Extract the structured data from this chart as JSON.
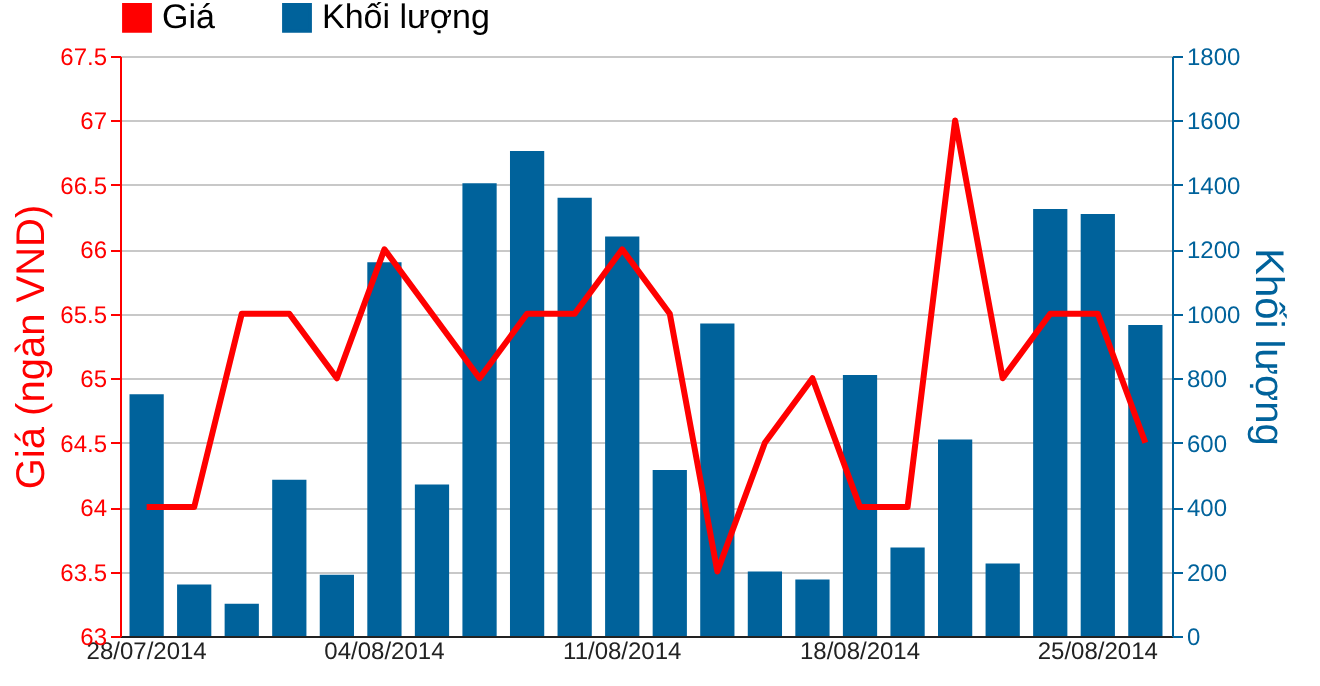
{
  "chart_data": {
    "type": "bar",
    "categories": [
      "28/07/2014",
      null,
      null,
      null,
      null,
      "04/08/2014",
      null,
      null,
      null,
      null,
      "11/08/2014",
      null,
      null,
      null,
      null,
      "18/08/2014",
      null,
      null,
      null,
      null,
      "25/08/2014",
      null
    ],
    "series": [
      {
        "name": "Giá",
        "type": "line",
        "axis": "y",
        "color": "#ff0000",
        "values": [
          64,
          64,
          65.5,
          65.5,
          65,
          66,
          65.5,
          65,
          65.5,
          65.5,
          66,
          65.5,
          63.5,
          64.5,
          65,
          64,
          64,
          67,
          65,
          65.5,
          65.5,
          64.5
        ]
      },
      {
        "name": "Khối lượng",
        "axis": "y2",
        "color": "#00629b",
        "values": [
          750,
          160,
          100,
          485,
          190,
          1160,
          470,
          1405,
          1505,
          1360,
          1240,
          515,
          970,
          200,
          175,
          810,
          275,
          610,
          225,
          1325,
          1310,
          965
        ]
      }
    ],
    "ylabel": "Giá (ngàn VND)",
    "y2label": "Khối lượng",
    "ylim": [
      63,
      67.5
    ],
    "yticks": [
      63,
      63.5,
      64,
      64.5,
      65,
      65.5,
      66,
      66.5,
      67,
      67.5
    ],
    "y2lim": [
      0,
      1800
    ],
    "y2ticks": [
      0,
      200,
      400,
      600,
      800,
      1000,
      1200,
      1400,
      1600,
      1800
    ],
    "grid": "y",
    "legend": "top left"
  }
}
